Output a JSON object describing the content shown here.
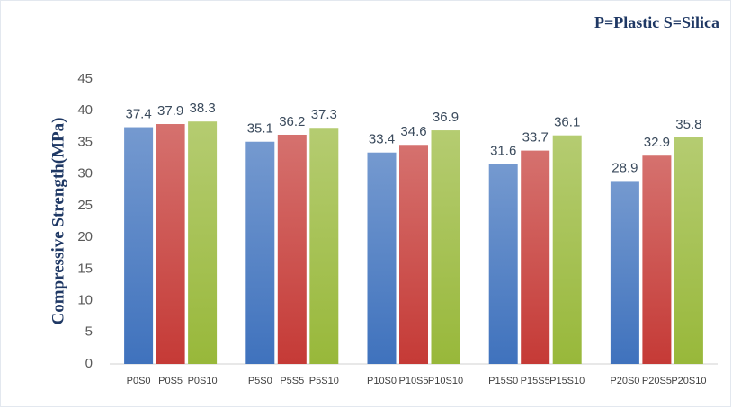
{
  "chart_data": {
    "type": "grouped_bar",
    "annotation": "P=Plastic S=Silica",
    "y_label": "Compressive Strength(MPa)",
    "colors": [
      "#3f72bd",
      "#c53a36",
      "#98b83a"
    ],
    "groups": [
      {
        "categories": [
          "P0S0",
          "P0S5",
          "P0S10"
        ],
        "values": [
          37.4,
          37.9,
          38.3
        ]
      },
      {
        "categories": [
          "P5S0",
          "P5S5",
          "P5S10"
        ],
        "values": [
          35.1,
          36.2,
          37.3
        ]
      },
      {
        "categories": [
          "P10S0",
          "P10S5",
          "P10S10"
        ],
        "values": [
          33.4,
          34.6,
          36.9
        ]
      },
      {
        "categories": [
          "P15S0",
          "P15S5",
          "P15S10"
        ],
        "values": [
          31.6,
          33.7,
          36.1
        ]
      },
      {
        "categories": [
          "P20S0",
          "P20S5",
          "P20S10"
        ],
        "values": [
          28.9,
          32.9,
          35.8
        ]
      }
    ],
    "ylim": [
      0,
      45
    ],
    "yticks": [
      0,
      5,
      10,
      15,
      20,
      25,
      30,
      35,
      40,
      45
    ],
    "grid": false
  }
}
